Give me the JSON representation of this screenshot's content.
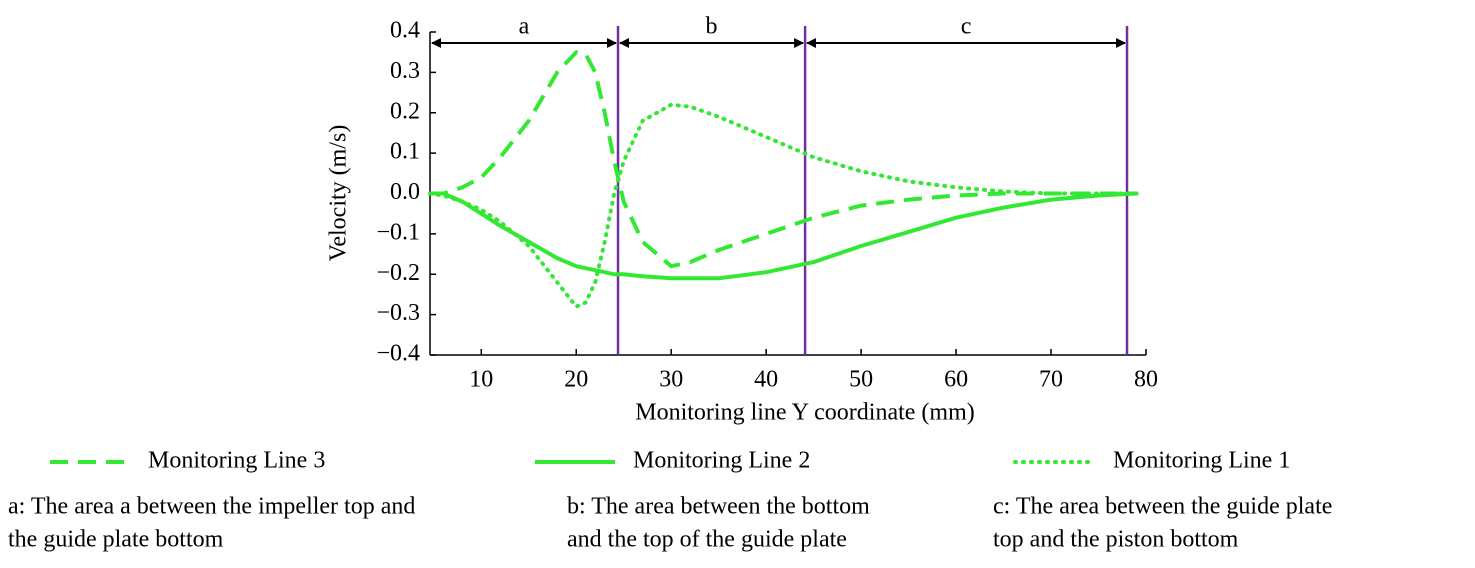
{
  "chart_data": {
    "type": "line",
    "xlabel": "Monitoring line Y coordinate (mm)",
    "ylabel": "Velocity (m/s)",
    "x": [
      4.6,
      6,
      8,
      10,
      12,
      15,
      18,
      20,
      21,
      22,
      23,
      24,
      25,
      27,
      30,
      32,
      35,
      40,
      45,
      50,
      55,
      60,
      65,
      70,
      75,
      79
    ],
    "series": [
      {
        "name": "Monitoring Line 3",
        "color": "#33e833",
        "style": "dashed",
        "values": [
          0,
          0,
          0.015,
          0.04,
          0.09,
          0.18,
          0.3,
          0.35,
          0.345,
          0.3,
          0.2,
          0.08,
          -0.02,
          -0.12,
          -0.18,
          -0.17,
          -0.14,
          -0.1,
          -0.06,
          -0.03,
          -0.015,
          -0.005,
          0,
          0,
          0,
          0
        ]
      },
      {
        "name": "Monitoring Line 2",
        "color": "#33e833",
        "style": "solid",
        "values": [
          0,
          0,
          -0.02,
          -0.05,
          -0.08,
          -0.12,
          -0.16,
          -0.18,
          -0.185,
          -0.19,
          -0.195,
          -0.2,
          -0.2,
          -0.205,
          -0.21,
          -0.21,
          -0.21,
          -0.195,
          -0.17,
          -0.13,
          -0.095,
          -0.06,
          -0.035,
          -0.015,
          -0.005,
          0
        ]
      },
      {
        "name": "Monitoring Line 1",
        "color": "#33e833",
        "style": "dotted",
        "values": [
          0,
          -0.005,
          -0.02,
          -0.04,
          -0.07,
          -0.13,
          -0.22,
          -0.28,
          -0.27,
          -0.22,
          -0.12,
          0,
          0.08,
          0.18,
          0.22,
          0.215,
          0.19,
          0.14,
          0.09,
          0.055,
          0.03,
          0.015,
          0.005,
          0,
          0,
          0
        ]
      }
    ],
    "xlim": [
      4.6,
      80
    ],
    "ylim": [
      -0.4,
      0.4
    ],
    "xticks": [
      10,
      20,
      30,
      40,
      50,
      60,
      70,
      80
    ],
    "yticks": [
      0.4,
      0.3,
      0.2,
      0.1,
      {
        "value": 0,
        "label": "0.0"
      },
      {
        "value": -0.1,
        "label": "−0.1"
      },
      {
        "value": -0.2,
        "label": "−0.2"
      },
      {
        "value": -0.3,
        "label": "−0.3"
      },
      {
        "value": -0.4,
        "label": "−0.4"
      }
    ],
    "regions": [
      {
        "label": "a",
        "from": 4.6,
        "to": 24.4
      },
      {
        "label": "b",
        "from": 24.4,
        "to": 44.1
      },
      {
        "label": "c",
        "from": 44.1,
        "to": 78.0
      }
    ],
    "boundary_color": "#7030a0",
    "notes": [
      [
        "a: The area a between the impeller top and",
        "the guide plate bottom"
      ],
      [
        "b: The area between the bottom",
        "and the top of the  guide plate"
      ],
      [
        "c: The area  between the guide plate",
        "top and the piston bottom"
      ]
    ]
  }
}
